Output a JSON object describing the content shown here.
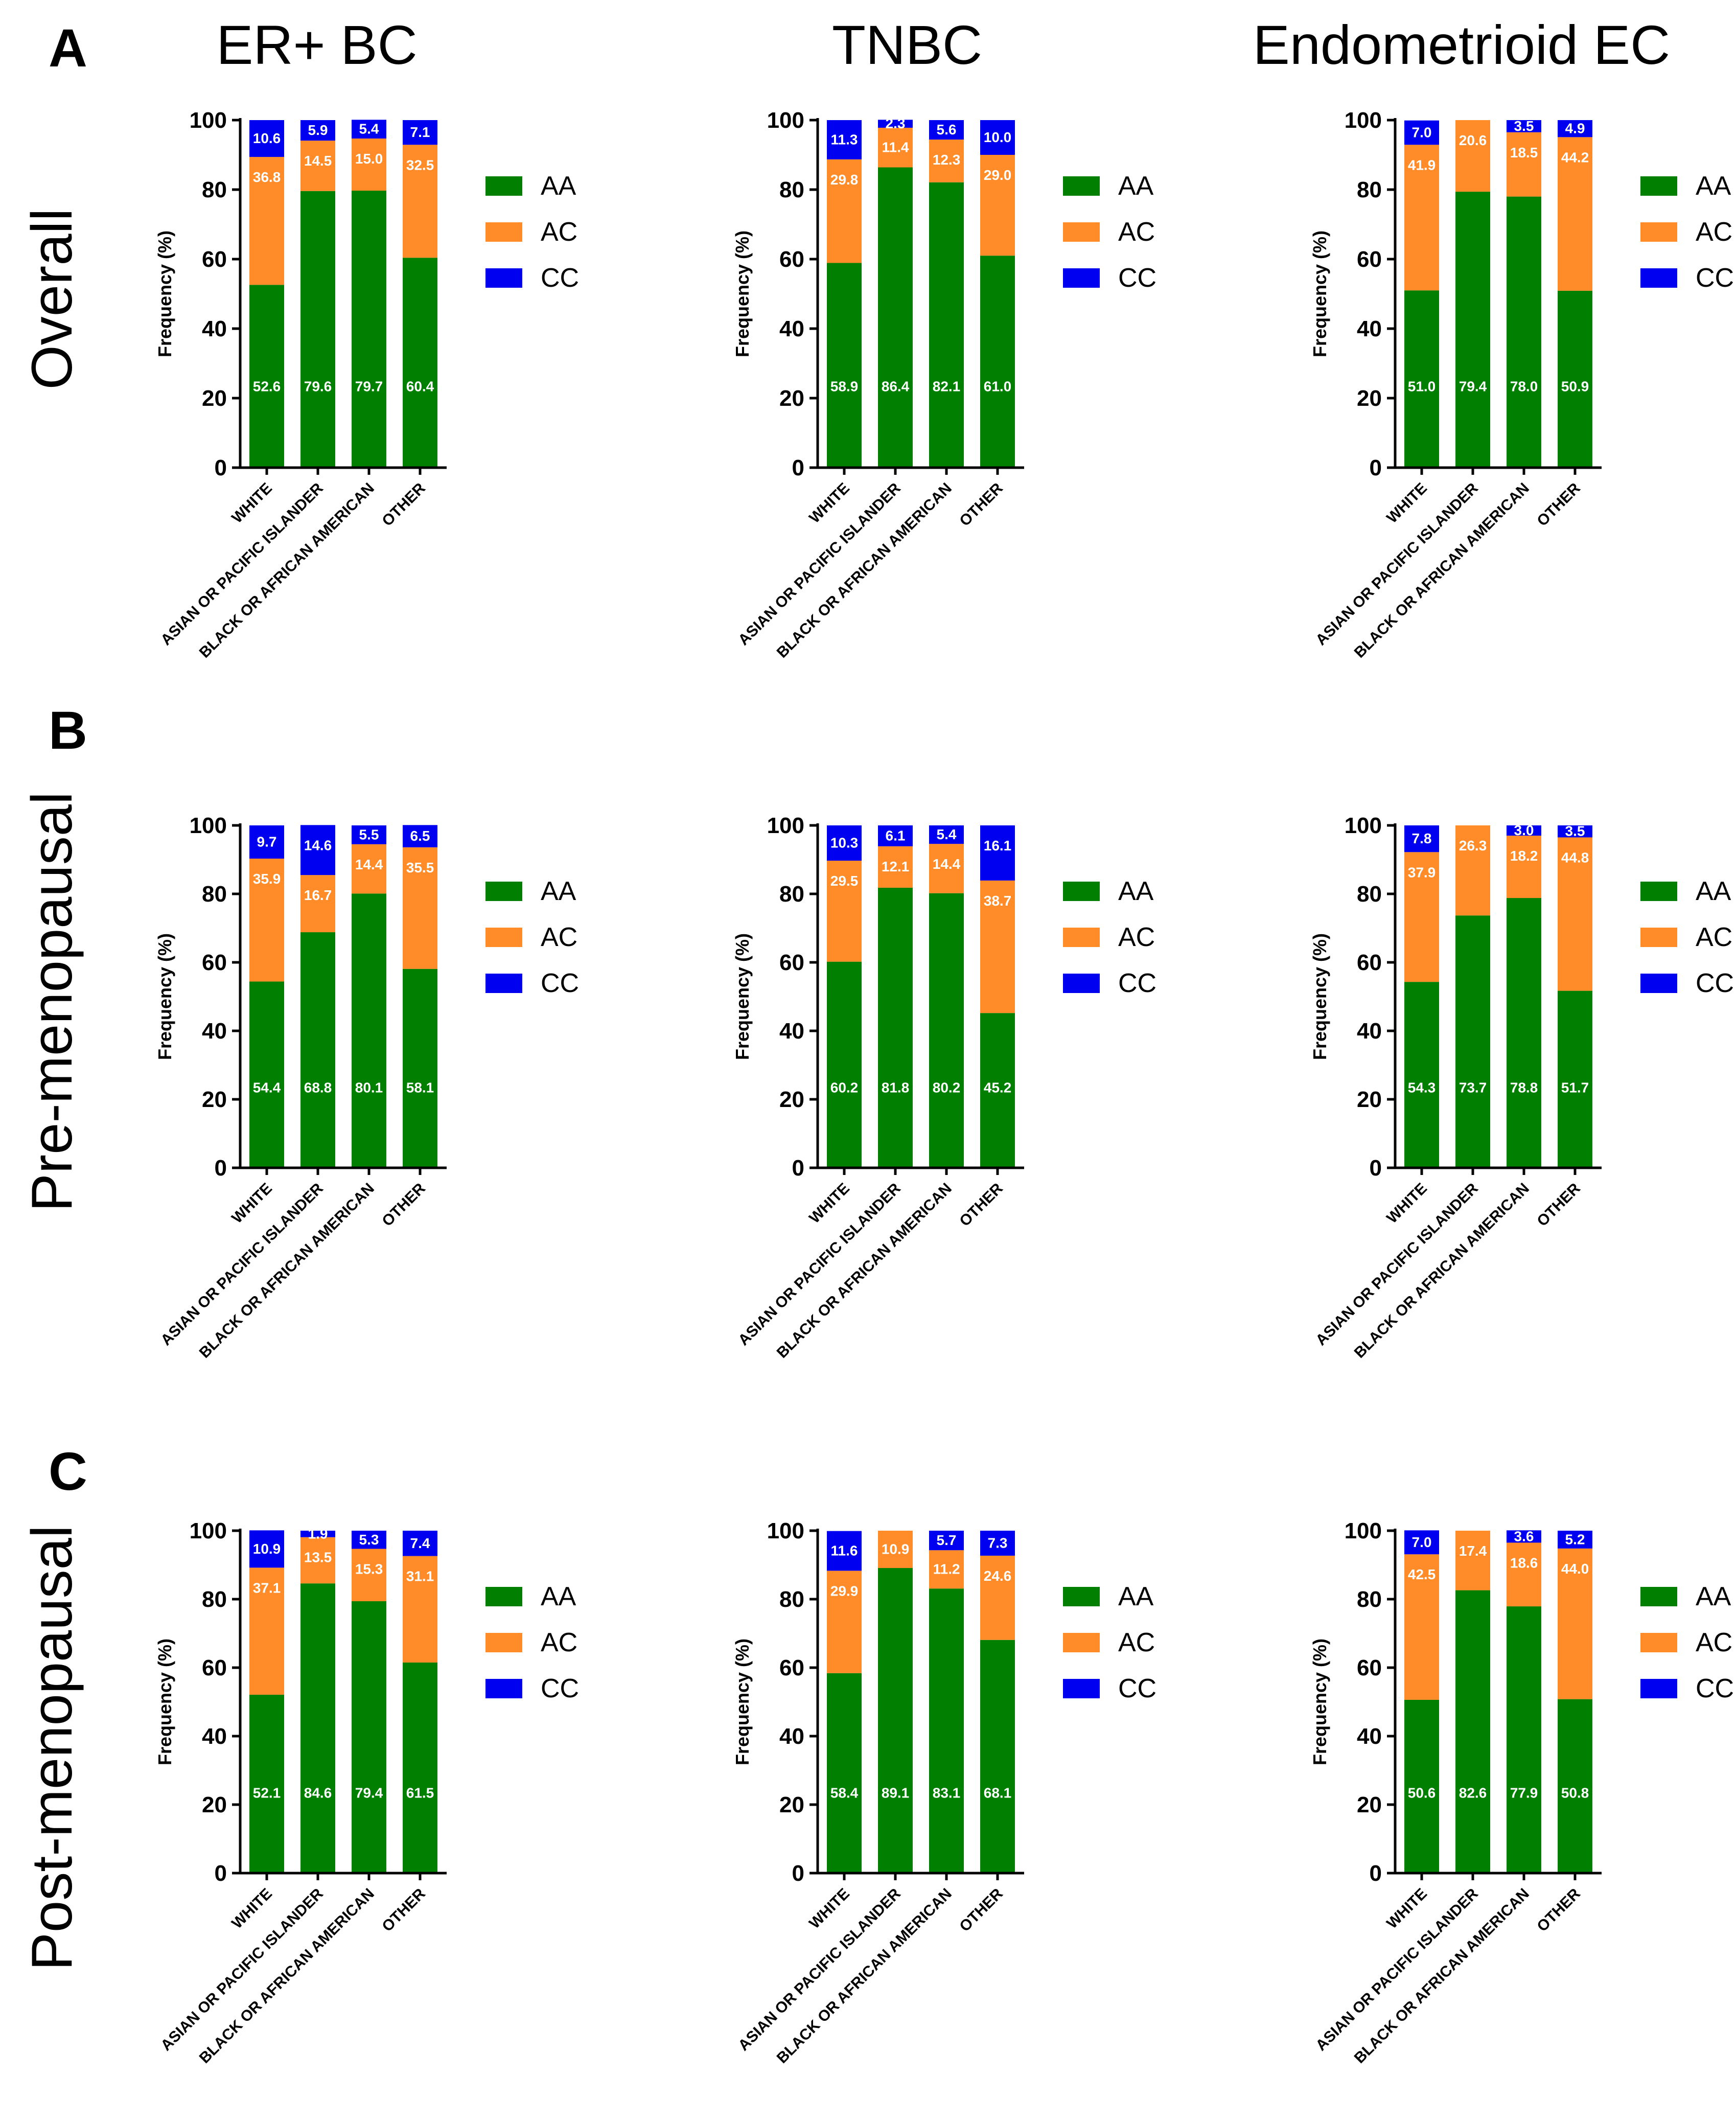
{
  "figure": {
    "row_labels": [
      "A",
      "B",
      "C"
    ],
    "row_titles": [
      "Overall",
      "Pre-menopausal",
      "Post-menopausal"
    ],
    "column_titles": [
      "ER+ BC",
      "TNBC",
      "Endometrioid EC"
    ]
  },
  "legend": {
    "entries": [
      {
        "name": "AA",
        "color": "#007F00"
      },
      {
        "name": "AC",
        "color": "#FF8C28"
      },
      {
        "name": "CC",
        "color": "#0000F0"
      }
    ]
  },
  "chart_data": [
    {
      "type": "bar",
      "stacked": true,
      "panel": "A",
      "row": "Overall",
      "column": "ER+ BC",
      "ylabel": "Frequency (%)",
      "ylim": [
        0,
        100
      ],
      "yticks": [
        0,
        20,
        40,
        60,
        80,
        100
      ],
      "categories": [
        "WHITE",
        "ASIAN OR PACIFIC ISLANDER",
        "BLACK OR AFRICAN AMERICAN",
        "OTHER"
      ],
      "series": [
        {
          "name": "AA",
          "values": [
            52.6,
            79.6,
            79.7,
            60.4
          ],
          "labels": [
            "52.6",
            "79.6",
            "79.7",
            "60.4"
          ]
        },
        {
          "name": "AC",
          "values": [
            36.8,
            14.5,
            15.0,
            32.5
          ],
          "labels": [
            "36.8",
            "14.5",
            "15.0",
            "32.5"
          ]
        },
        {
          "name": "CC",
          "values": [
            10.6,
            5.9,
            5.4,
            7.1
          ],
          "labels": [
            "10.6",
            "5.9",
            "5.4",
            "7.1"
          ]
        }
      ]
    },
    {
      "type": "bar",
      "stacked": true,
      "panel": "A",
      "row": "Overall",
      "column": "TNBC",
      "ylabel": "Frequency (%)",
      "ylim": [
        0,
        100
      ],
      "yticks": [
        0,
        20,
        40,
        60,
        80,
        100
      ],
      "categories": [
        "WHITE",
        "ASIAN OR PACIFIC ISLANDER",
        "BLACK OR AFRICAN AMERICAN",
        "OTHER"
      ],
      "series": [
        {
          "name": "AA",
          "values": [
            58.9,
            86.4,
            82.1,
            61.0
          ],
          "labels": [
            "58.9",
            "86.4",
            "82.1",
            "61.0"
          ]
        },
        {
          "name": "AC",
          "values": [
            29.8,
            11.4,
            12.3,
            29.0
          ],
          "labels": [
            "29.8",
            "11.4",
            "12.3",
            "29.0"
          ]
        },
        {
          "name": "CC",
          "values": [
            11.3,
            2.3,
            5.6,
            10.0
          ],
          "labels": [
            "11.3",
            "2.3",
            "5.6",
            "10.0"
          ]
        }
      ]
    },
    {
      "type": "bar",
      "stacked": true,
      "panel": "A",
      "row": "Overall",
      "column": "Endometrioid EC",
      "ylabel": "Frequency (%)",
      "ylim": [
        0,
        100
      ],
      "yticks": [
        0,
        20,
        40,
        60,
        80,
        100
      ],
      "categories": [
        "WHITE",
        "ASIAN OR PACIFIC ISLANDER",
        "BLACK OR AFRICAN AMERICAN",
        "OTHER"
      ],
      "series": [
        {
          "name": "AA",
          "values": [
            51.0,
            79.4,
            78.0,
            50.9
          ],
          "labels": [
            "51.0",
            "79.4",
            "78.0",
            "50.9"
          ]
        },
        {
          "name": "AC",
          "values": [
            41.9,
            20.6,
            18.5,
            44.2
          ],
          "labels": [
            "41.9",
            "20.6",
            "18.5",
            "44.2"
          ]
        },
        {
          "name": "CC",
          "values": [
            7.0,
            0,
            3.5,
            4.9
          ],
          "labels": [
            "7.0",
            "",
            "3.5",
            "4.9"
          ]
        }
      ]
    },
    {
      "type": "bar",
      "stacked": true,
      "panel": "B",
      "row": "Pre-menopausal",
      "column": "ER+ BC",
      "ylabel": "Frequency (%)",
      "ylim": [
        0,
        100
      ],
      "yticks": [
        0,
        20,
        40,
        60,
        80,
        100
      ],
      "categories": [
        "WHITE",
        "ASIAN OR PACIFIC ISLANDER",
        "BLACK OR AFRICAN AMERICAN",
        "OTHER"
      ],
      "series": [
        {
          "name": "AA",
          "values": [
            54.4,
            68.8,
            80.1,
            58.1
          ],
          "labels": [
            "54.4",
            "68.8",
            "80.1",
            "58.1"
          ]
        },
        {
          "name": "AC",
          "values": [
            35.9,
            16.7,
            14.4,
            35.5
          ],
          "labels": [
            "35.9",
            "16.7",
            "14.4",
            "35.5"
          ]
        },
        {
          "name": "CC",
          "values": [
            9.7,
            14.6,
            5.5,
            6.5
          ],
          "labels": [
            "9.7",
            "14.6",
            "5.5",
            "6.5"
          ]
        }
      ]
    },
    {
      "type": "bar",
      "stacked": true,
      "panel": "B",
      "row": "Pre-menopausal",
      "column": "TNBC",
      "ylabel": "Frequency (%)",
      "ylim": [
        0,
        100
      ],
      "yticks": [
        0,
        20,
        40,
        60,
        80,
        100
      ],
      "categories": [
        "WHITE",
        "ASIAN OR PACIFIC ISLANDER",
        "BLACK OR AFRICAN AMERICAN",
        "OTHER"
      ],
      "series": [
        {
          "name": "AA",
          "values": [
            60.2,
            81.8,
            80.2,
            45.2
          ],
          "labels": [
            "60.2",
            "81.8",
            "80.2",
            "45.2"
          ]
        },
        {
          "name": "AC",
          "values": [
            29.5,
            12.1,
            14.4,
            38.7
          ],
          "labels": [
            "29.5",
            "12.1",
            "14.4",
            "38.7"
          ]
        },
        {
          "name": "CC",
          "values": [
            10.3,
            6.1,
            5.4,
            16.1
          ],
          "labels": [
            "10.3",
            "6.1",
            "5.4",
            "16.1"
          ]
        }
      ]
    },
    {
      "type": "bar",
      "stacked": true,
      "panel": "B",
      "row": "Pre-menopausal",
      "column": "Endometrioid EC",
      "ylabel": "Frequency (%)",
      "ylim": [
        0,
        100
      ],
      "yticks": [
        0,
        20,
        40,
        60,
        80,
        100
      ],
      "categories": [
        "WHITE",
        "ASIAN OR PACIFIC ISLANDER",
        "BLACK OR AFRICAN AMERICAN",
        "OTHER"
      ],
      "series": [
        {
          "name": "AA",
          "values": [
            54.3,
            73.7,
            78.8,
            51.7
          ],
          "labels": [
            "54.3",
            "73.7",
            "78.8",
            "51.7"
          ]
        },
        {
          "name": "AC",
          "values": [
            37.9,
            26.3,
            18.2,
            44.8
          ],
          "labels": [
            "37.9",
            "26.3",
            "18.2",
            "44.8"
          ]
        },
        {
          "name": "CC",
          "values": [
            7.8,
            0,
            3.0,
            3.5
          ],
          "labels": [
            "7.8",
            "",
            "3.0",
            "3.5"
          ]
        }
      ]
    },
    {
      "type": "bar",
      "stacked": true,
      "panel": "C",
      "row": "Post-menopausal",
      "column": "ER+ BC",
      "ylabel": "Frequency (%)",
      "ylim": [
        0,
        100
      ],
      "yticks": [
        0,
        20,
        40,
        60,
        80,
        100
      ],
      "categories": [
        "WHITE",
        "ASIAN OR PACIFIC ISLANDER",
        "BLACK OR AFRICAN AMERICAN",
        "OTHER"
      ],
      "series": [
        {
          "name": "AA",
          "values": [
            52.1,
            84.6,
            79.4,
            61.5
          ],
          "labels": [
            "52.1",
            "84.6",
            "79.4",
            "61.5"
          ]
        },
        {
          "name": "AC",
          "values": [
            37.1,
            13.5,
            15.3,
            31.1
          ],
          "labels": [
            "37.1",
            "13.5",
            "15.3",
            "31.1"
          ]
        },
        {
          "name": "CC",
          "values": [
            10.9,
            1.9,
            5.3,
            7.4
          ],
          "labels": [
            "10.9",
            "1.9",
            "5.3",
            "7.4"
          ]
        }
      ]
    },
    {
      "type": "bar",
      "stacked": true,
      "panel": "C",
      "row": "Post-menopausal",
      "column": "TNBC",
      "ylabel": "Frequency (%)",
      "ylim": [
        0,
        100
      ],
      "yticks": [
        0,
        20,
        40,
        60,
        80,
        100
      ],
      "categories": [
        "WHITE",
        "ASIAN OR PACIFIC ISLANDER",
        "BLACK OR AFRICAN AMERICAN",
        "OTHER"
      ],
      "series": [
        {
          "name": "AA",
          "values": [
            58.4,
            89.1,
            83.1,
            68.1
          ],
          "labels": [
            "58.4",
            "89.1",
            "83.1",
            "68.1"
          ]
        },
        {
          "name": "AC",
          "values": [
            29.9,
            10.9,
            11.2,
            24.6
          ],
          "labels": [
            "29.9",
            "10.9",
            "11.2",
            "24.6"
          ]
        },
        {
          "name": "CC",
          "values": [
            11.6,
            0,
            5.7,
            7.3
          ],
          "labels": [
            "11.6",
            "",
            "5.7",
            "7.3"
          ]
        }
      ]
    },
    {
      "type": "bar",
      "stacked": true,
      "panel": "C",
      "row": "Post-menopausal",
      "column": "Endometrioid EC",
      "ylabel": "Frequency (%)",
      "ylim": [
        0,
        100
      ],
      "yticks": [
        0,
        20,
        40,
        60,
        80,
        100
      ],
      "categories": [
        "WHITE",
        "ASIAN OR PACIFIC ISLANDER",
        "BLACK OR AFRICAN AMERICAN",
        "OTHER"
      ],
      "series": [
        {
          "name": "AA",
          "values": [
            50.6,
            82.6,
            77.9,
            50.8
          ],
          "labels": [
            "50.6",
            "82.6",
            "77.9",
            "50.8"
          ]
        },
        {
          "name": "AC",
          "values": [
            42.5,
            17.4,
            18.6,
            44.0
          ],
          "labels": [
            "42.5",
            "17.4",
            "18.6",
            "44.0"
          ]
        },
        {
          "name": "CC",
          "values": [
            7.0,
            0,
            3.6,
            5.2
          ],
          "labels": [
            "7.0",
            "",
            "3.6",
            "5.2"
          ]
        }
      ]
    }
  ]
}
